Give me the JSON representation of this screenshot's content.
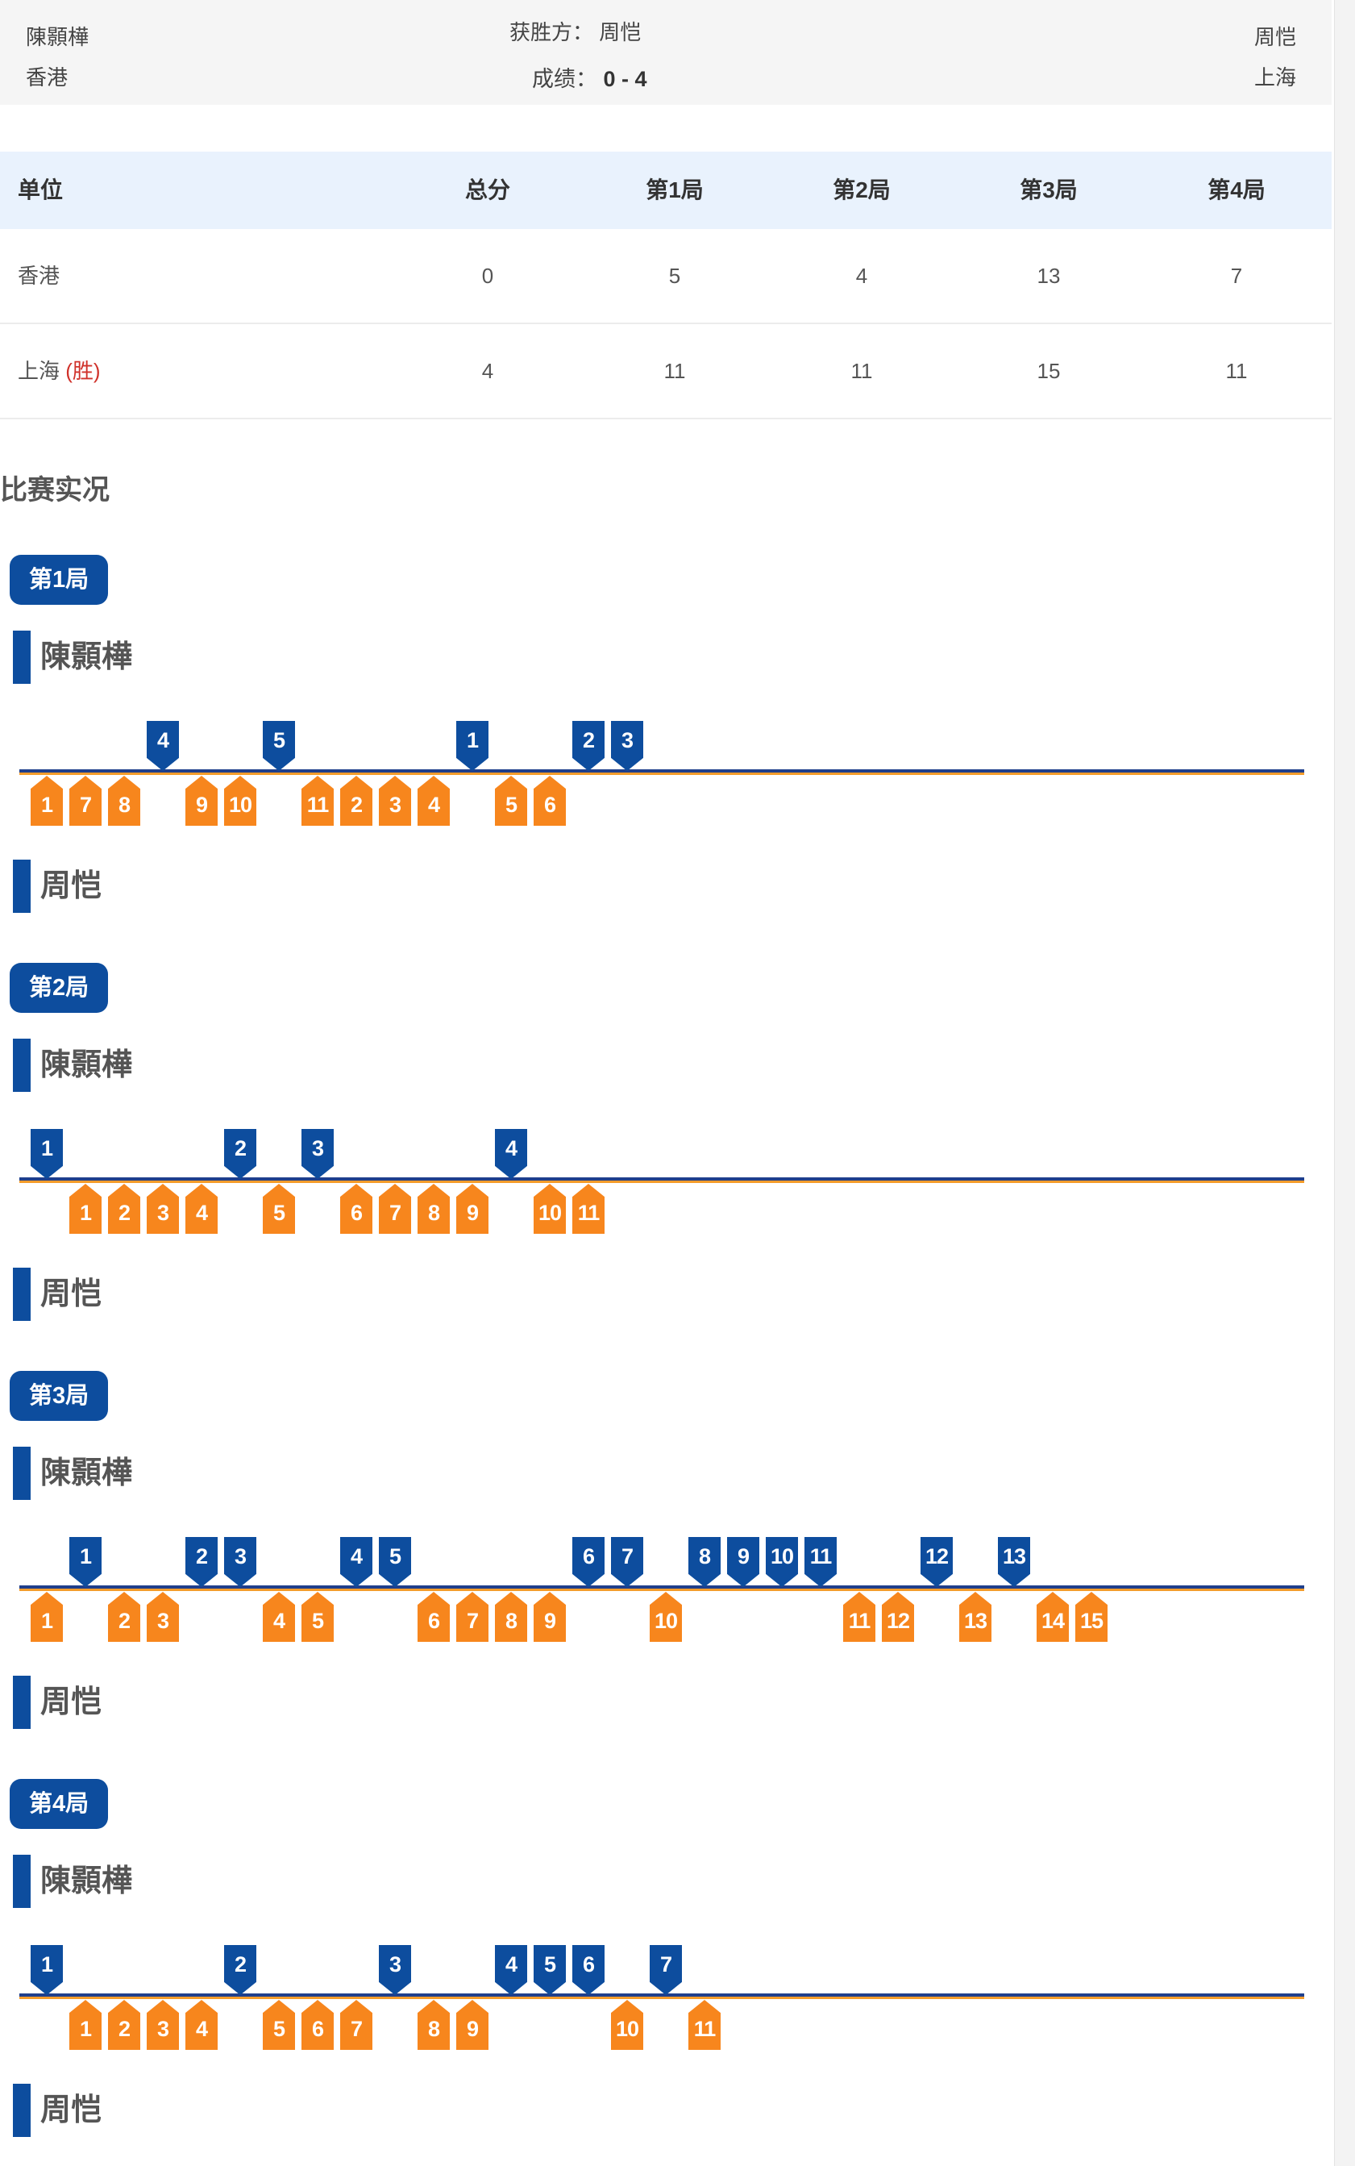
{
  "header": {
    "player_a": "陳顥樺",
    "team_a": "香港",
    "winner_label": "获胜方：",
    "winner_name": "周恺",
    "score_label": "成绩：",
    "score_value": "0 - 4",
    "player_b": "周恺",
    "team_b": "上海"
  },
  "table": {
    "headers": [
      "单位",
      "总分",
      "第1局",
      "第2局",
      "第3局",
      "第4局"
    ],
    "rows": [
      {
        "team": "香港",
        "win": "",
        "cells": [
          "0",
          "5",
          "4",
          "13",
          "7"
        ]
      },
      {
        "team": "上海",
        "win": "(胜)",
        "cells": [
          "4",
          "11",
          "11",
          "15",
          "11"
        ]
      }
    ]
  },
  "section_title": "比赛实况",
  "games": [
    {
      "label": "第1局",
      "top_player": "陳顥樺",
      "bottom_player": "周恺",
      "points": [
        "O1",
        "O7",
        "O8",
        "B4",
        "O9",
        "O10",
        "B5",
        "O11",
        "O2",
        "O3",
        "O4",
        "B1",
        "O5",
        "O6",
        "B2",
        "B3"
      ]
    },
    {
      "label": "第2局",
      "top_player": "陳顥樺",
      "bottom_player": "周恺",
      "points": [
        "B1",
        "O1",
        "O2",
        "O3",
        "O4",
        "B2",
        "O5",
        "B3",
        "O6",
        "O7",
        "O8",
        "O9",
        "B4",
        "O10",
        "O11"
      ]
    },
    {
      "label": "第3局",
      "top_player": "陳顥樺",
      "bottom_player": "周恺",
      "points": [
        "O1",
        "B1",
        "O2",
        "O3",
        "B2",
        "B3",
        "O4",
        "O5",
        "B4",
        "B5",
        "O6",
        "O7",
        "O8",
        "O9",
        "B6",
        "B7",
        "O10",
        "B8",
        "B9",
        "B10",
        "B11",
        "O11",
        "O12",
        "B12",
        "O13",
        "B13",
        "O14",
        "O15"
      ]
    },
    {
      "label": "第4局",
      "top_player": "陳顥樺",
      "bottom_player": "周恺",
      "points": [
        "B1",
        "O1",
        "O2",
        "O3",
        "O4",
        "B2",
        "O5",
        "O6",
        "O7",
        "B3",
        "O8",
        "O9",
        "B4",
        "B5",
        "B6",
        "O10",
        "B7",
        "O11"
      ]
    }
  ],
  "colors": {
    "blue": "#0d4d9e",
    "orange": "#f7861d",
    "win_red": "#d0322b"
  }
}
